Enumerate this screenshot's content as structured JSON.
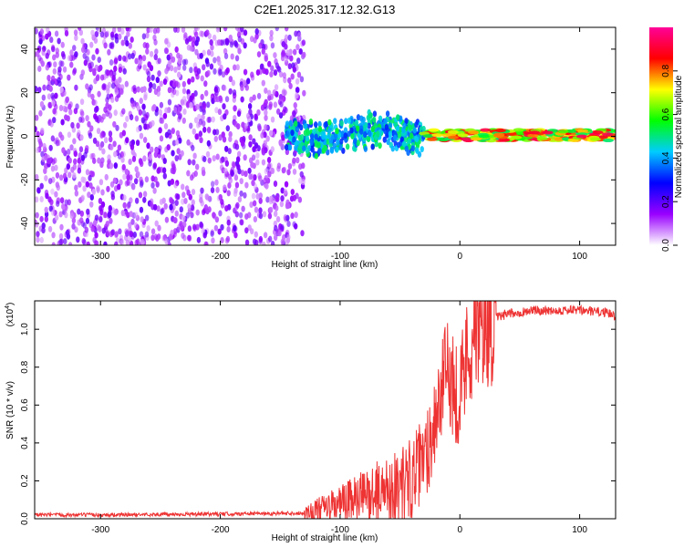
{
  "title": "C2E1.2025.317.12.32.G13",
  "chart_data": [
    {
      "type": "heatmap",
      "title": "C2E1.2025.317.12.32.G13",
      "xlabel": "Height of straight line (km)",
      "ylabel": "Frequency (Hz)",
      "xlim": [
        -355,
        130
      ],
      "ylim": [
        -50,
        50
      ],
      "xticks": [
        -300,
        -200,
        -100,
        0,
        100
      ],
      "xtick_labels": [
        "-300",
        "-200",
        "-100",
        "0",
        "100"
      ],
      "yticks": [
        -40,
        -20,
        0,
        20,
        40
      ],
      "ytick_labels": [
        "-40",
        "-20",
        "0",
        "20",
        "40"
      ],
      "colorbar": {
        "label": "Normalized spectral amplitude",
        "range": [
          0,
          1
        ],
        "ticks": [
          0.0,
          0.2,
          0.4,
          0.6,
          0.8
        ],
        "tick_labels": [
          "0.0",
          "0.2",
          "0.4",
          "0.6",
          "0.8"
        ],
        "colors": [
          "#ffffff",
          "#9900ff",
          "#0000ff",
          "#00ccff",
          "#00ff00",
          "#ffff00",
          "#ff0000",
          "#ff0099"
        ]
      },
      "regions": [
        {
          "name": "noise",
          "x_range": [
            -355,
            -130
          ],
          "freq_range": [
            -50,
            50
          ],
          "amplitude": [
            0.05,
            0.2
          ]
        },
        {
          "name": "transition",
          "x_range": [
            -145,
            -30
          ],
          "freq_range": [
            -8,
            10
          ],
          "amplitude": [
            0.3,
            0.55
          ]
        },
        {
          "name": "carrier",
          "x_range": [
            -30,
            130
          ],
          "freq_range": [
            -2,
            3
          ],
          "amplitude": [
            0.5,
            0.95
          ]
        }
      ]
    },
    {
      "type": "line",
      "xlabel": "Height of straight line (km)",
      "ylabel": "SNR (10 * v/v)",
      "scale_label": "(x10",
      "scale_exp": "4",
      "color": "#ee3333",
      "xlim": [
        -355,
        130
      ],
      "ylim": [
        0,
        1.15
      ],
      "xticks": [
        -300,
        -200,
        -100,
        0,
        100
      ],
      "xtick_labels": [
        "-300",
        "-200",
        "-100",
        "0",
        "100"
      ],
      "yticks": [
        0.0,
        0.2,
        0.4,
        0.6,
        0.8,
        1.0
      ],
      "ytick_labels": [
        "0.0",
        "0.2",
        "0.4",
        "0.6",
        "0.8",
        "1.0"
      ],
      "x": [
        -355,
        -300,
        -200,
        -130,
        -110,
        -90,
        -70,
        -50,
        -40,
        -30,
        -25,
        -20,
        -15,
        -10,
        -5,
        0,
        5,
        10,
        20,
        30,
        40,
        60,
        80,
        100,
        120,
        130
      ],
      "values": [
        0.02,
        0.02,
        0.025,
        0.03,
        0.06,
        0.1,
        0.14,
        0.18,
        0.22,
        0.3,
        0.42,
        0.55,
        0.68,
        0.8,
        0.7,
        0.65,
        0.85,
        0.95,
        1.02,
        1.06,
        1.08,
        1.1,
        1.1,
        1.1,
        1.09,
        1.07
      ]
    }
  ]
}
